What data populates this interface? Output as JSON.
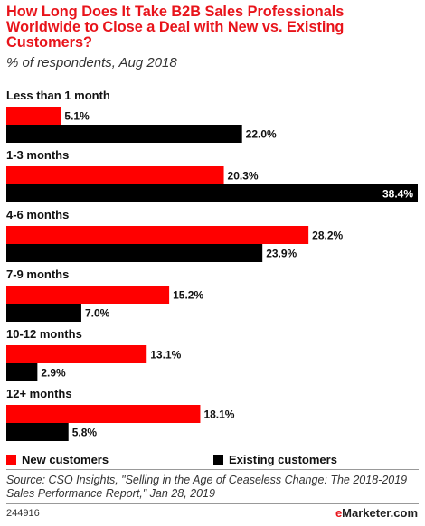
{
  "header": {
    "title": "How Long Does It Take B2B Sales Professionals Worldwide to Close a Deal with New vs. Existing Customers?",
    "subtitle": "% of respondents, Aug 2018"
  },
  "chart_data": {
    "type": "bar",
    "orientation": "horizontal",
    "title": "How Long Does It Take B2B Sales Professionals Worldwide to Close a Deal with New vs. Existing Customers?",
    "subtitle": "% of respondents, Aug 2018",
    "categories": [
      "Less than 1 month",
      "1-3 months",
      "4-6 months",
      "7-9 months",
      "10-12 months",
      "12+ months"
    ],
    "series": [
      {
        "name": "New customers",
        "color": "#ff0000",
        "values": [
          5.1,
          20.3,
          28.2,
          15.2,
          13.1,
          18.1
        ]
      },
      {
        "name": "Existing customers",
        "color": "#000000",
        "values": [
          22.0,
          38.4,
          23.9,
          7.0,
          2.9,
          5.8
        ]
      }
    ],
    "value_labels": [
      [
        "5.1%",
        "20.3%",
        "28.2%",
        "15.2%",
        "13.1%",
        "18.1%"
      ],
      [
        "22.0%",
        "38.4%",
        "23.9%",
        "7.0%",
        "2.9%",
        "5.8%"
      ]
    ],
    "xlim": [
      0,
      38.4
    ],
    "grid": false,
    "legend_position": "bottom"
  },
  "legend": {
    "new_label": "New customers",
    "existing_label": "Existing customers",
    "new_color": "#ff0000",
    "existing_color": "#000000"
  },
  "footer": {
    "source": "Source: CSO Insights, \"Selling in the Age of Ceaseless Change: The 2018-2019 Sales Performance Report,\" Jan 28, 2019",
    "chart_id": "244916",
    "brand_prefix": "e",
    "brand_name": "Marketer",
    "brand_suffix": ".com"
  }
}
